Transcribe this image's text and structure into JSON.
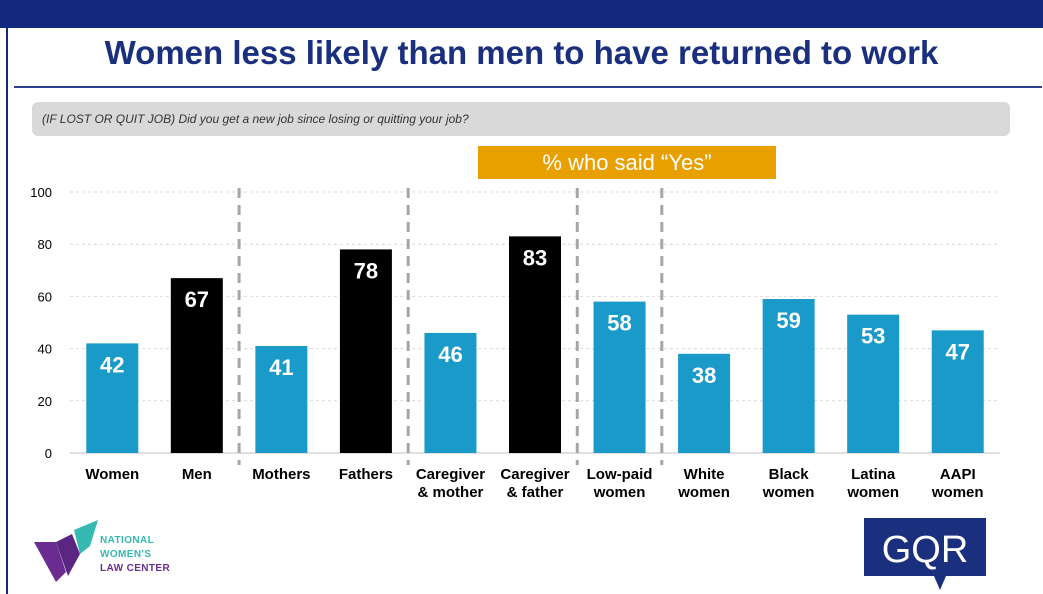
{
  "slide": {
    "title": "Women less likely than men to have returned to work",
    "question": "(IF LOST OR QUIT JOB) Did you get a new job since losing or quitting your job?",
    "highlight": "% who said “Yes”"
  },
  "chart_data": {
    "type": "bar",
    "title": "% who said “Yes”",
    "xlabel": "",
    "ylabel": "",
    "ylim": [
      0,
      100
    ],
    "yticks": [
      0,
      20,
      40,
      60,
      80,
      100
    ],
    "grid": true,
    "categories": [
      [
        "Women"
      ],
      [
        "Men"
      ],
      [
        "Mothers"
      ],
      [
        "Fathers"
      ],
      [
        "Caregiver",
        "& mother"
      ],
      [
        "Caregiver",
        "& father"
      ],
      [
        "Low-paid",
        "women"
      ],
      [
        "White",
        "women"
      ],
      [
        "Black",
        "women"
      ],
      [
        "Latina",
        "women"
      ],
      [
        "AAPI",
        "women"
      ]
    ],
    "values": [
      42,
      67,
      41,
      78,
      46,
      83,
      58,
      38,
      59,
      53,
      47
    ],
    "bar_colors": [
      "#1a9ac9",
      "#000000",
      "#1a9ac9",
      "#000000",
      "#1a9ac9",
      "#000000",
      "#1a9ac9",
      "#1a9ac9",
      "#1a9ac9",
      "#1a9ac9",
      "#1a9ac9"
    ],
    "group_dividers_after": [
      1,
      3,
      5,
      6
    ]
  },
  "logos": {
    "nwlc": {
      "lines": [
        "NATIONAL",
        "WOMEN'S",
        "LAW CENTER"
      ]
    },
    "gqr": {
      "text": "GQR"
    }
  },
  "colors": {
    "header": "#13297d",
    "title": "#1a2f7e",
    "women_bar": "#1a9ac9",
    "men_bar": "#000000",
    "highlight": "#e8a000"
  }
}
